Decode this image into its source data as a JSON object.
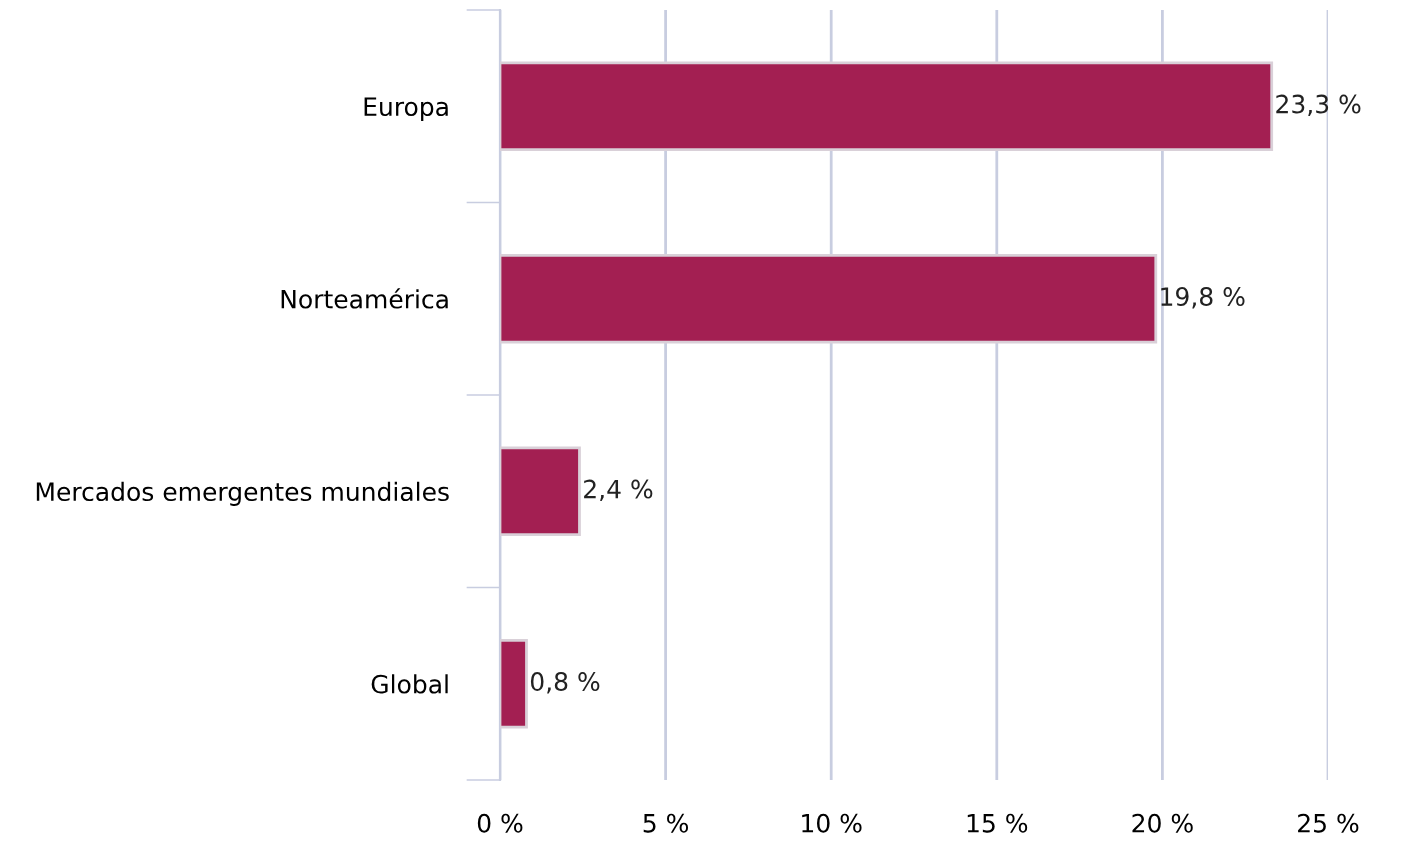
{
  "chart_data": {
    "type": "bar",
    "orientation": "horizontal",
    "categories": [
      "Europa",
      "Norteamérica",
      "Mercados emergentes mundiales",
      "Global"
    ],
    "values": [
      23.3,
      19.8,
      2.4,
      0.8
    ],
    "color": "#a31f52",
    "value_labels": [
      "23,3 %",
      "19,8 %",
      "2,4 %",
      "0,8 %"
    ],
    "xlim": [
      0,
      25
    ],
    "xticks": [
      {
        "value": 0,
        "label": "0 %"
      },
      {
        "value": 5,
        "label": "5 %"
      },
      {
        "value": 10,
        "label": "10 %"
      },
      {
        "value": 15,
        "label": "15 %"
      },
      {
        "value": 20,
        "label": "20 %"
      },
      {
        "value": 25,
        "label": "25 %"
      }
    ],
    "grid": "x"
  }
}
